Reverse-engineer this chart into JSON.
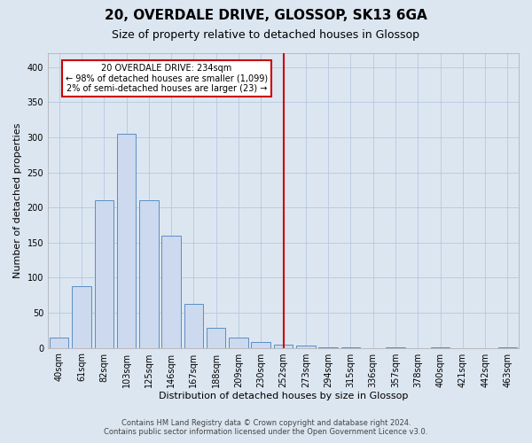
{
  "title": "20, OVERDALE DRIVE, GLOSSOP, SK13 6GA",
  "subtitle": "Size of property relative to detached houses in Glossop",
  "xlabel": "Distribution of detached houses by size in Glossop",
  "ylabel": "Number of detached properties",
  "footer_line1": "Contains HM Land Registry data © Crown copyright and database right 2024.",
  "footer_line2": "Contains public sector information licensed under the Open Government Licence v3.0.",
  "bar_labels": [
    "40sqm",
    "61sqm",
    "82sqm",
    "103sqm",
    "125sqm",
    "146sqm",
    "167sqm",
    "188sqm",
    "209sqm",
    "230sqm",
    "252sqm",
    "273sqm",
    "294sqm",
    "315sqm",
    "336sqm",
    "357sqm",
    "378sqm",
    "400sqm",
    "421sqm",
    "442sqm",
    "463sqm"
  ],
  "bar_values": [
    15,
    88,
    210,
    305,
    210,
    160,
    62,
    28,
    15,
    8,
    5,
    3,
    1,
    1,
    0,
    1,
    0,
    1,
    0,
    0,
    1
  ],
  "bar_color": "#ccd9ee",
  "bar_edge_color": "#5b8ec4",
  "background_color": "#dce6f1",
  "plot_bg_color": "#dce6f1",
  "ylim": [
    0,
    420
  ],
  "yticks": [
    0,
    50,
    100,
    150,
    200,
    250,
    300,
    350,
    400
  ],
  "vline_x": 10.0,
  "vline_color": "#cc0000",
  "annotation_text": "20 OVERDALE DRIVE: 234sqm\n← 98% of detached houses are smaller (1,099)\n2% of semi-detached houses are larger (23) →",
  "title_fontsize": 11,
  "subtitle_fontsize": 9,
  "axis_label_fontsize": 8,
  "tick_fontsize": 7,
  "footer_fontsize": 6,
  "bar_width": 0.85
}
